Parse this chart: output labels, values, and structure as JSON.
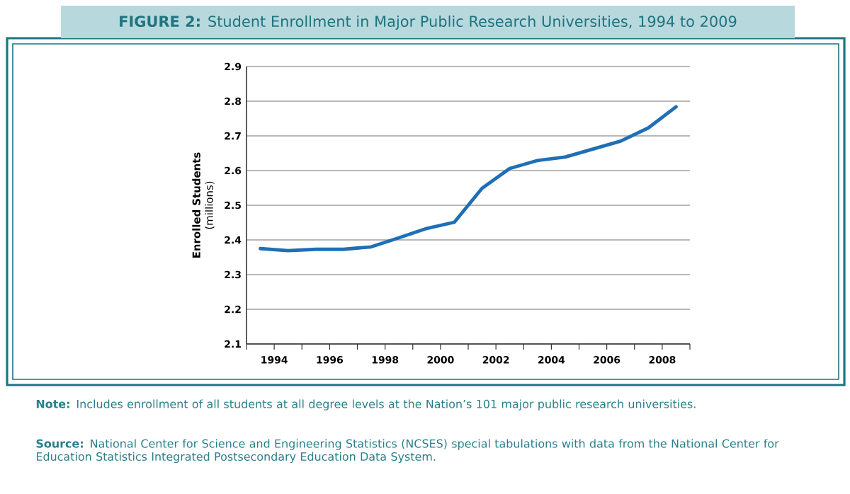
{
  "chart_data": {
    "type": "line",
    "title": "**FIGURE 2:** Student Enrollment in Major Public Research Universities, 1994 to 2009",
    "ylabel": "**Enrolled Students** (millions)",
    "x": [
      1993.5,
      1994.5,
      1995.5,
      1996.5,
      1997.5,
      1998.5,
      1999.5,
      2000.5,
      2001.5,
      2002.5,
      2003.5,
      2004.5,
      2005.5,
      2006.5,
      2007.5,
      2008.5
    ],
    "series": [
      {
        "color": "#1f6fb5",
        "values": [
          2.375,
          2.369,
          2.373,
          2.373,
          2.38,
          2.406,
          2.433,
          2.451,
          2.549,
          2.606,
          2.629,
          2.639,
          2.662,
          2.685,
          2.723,
          2.784
        ]
      }
    ],
    "xlim": [
      1993,
      2009
    ],
    "xticks": [
      {
        "value": 1993,
        "label": null
      },
      1994,
      {
        "value": 1995,
        "label": null
      },
      1996,
      {
        "value": 1997,
        "label": null
      },
      1998,
      {
        "value": 1999,
        "label": null
      },
      2000,
      {
        "value": 2001,
        "label": null
      },
      2002,
      {
        "value": 2003,
        "label": null
      },
      2004,
      {
        "value": 2005,
        "label": null
      },
      2006,
      {
        "value": 2007,
        "label": null
      },
      2008,
      {
        "value": 2009,
        "label": null
      }
    ],
    "ylim": [
      2.1,
      2.9
    ],
    "yticks": [
      2.1,
      2.2,
      2.3,
      2.4,
      2.5,
      2.6,
      2.7,
      2.8,
      2.9
    ],
    "grid": "y",
    "marker": "none",
    "line_style": "solid",
    "annotations": [
      "**Note:** Includes enrollment of all students at all degree levels at the Nation’s 101 major public research universities.",
      "**Source:** National Center for Science and Engineering Statistics (NCSES) special tabulations with data from the National Center for Education Statistics Integrated Postsecondary Education Data System."
    ]
  }
}
